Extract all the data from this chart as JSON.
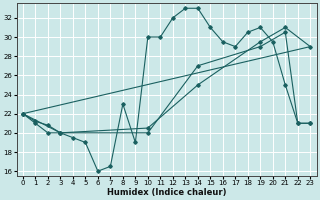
{
  "title": "",
  "xlabel": "Humidex (Indice chaleur)",
  "ylabel": "",
  "bg_color": "#cce8e8",
  "grid_color": "#ffffff",
  "line_color": "#1a6060",
  "xlim": [
    -0.5,
    23.5
  ],
  "ylim": [
    15.5,
    33.5
  ],
  "xticks": [
    0,
    1,
    2,
    3,
    4,
    5,
    6,
    7,
    8,
    9,
    10,
    11,
    12,
    13,
    14,
    15,
    16,
    17,
    18,
    19,
    20,
    21,
    22,
    23
  ],
  "yticks": [
    16,
    18,
    20,
    22,
    24,
    26,
    28,
    30,
    32
  ],
  "line1_x": [
    0,
    1,
    2,
    3,
    4,
    5,
    6,
    7,
    8,
    9,
    10,
    11,
    12,
    13,
    14,
    15,
    16,
    17,
    18,
    19,
    20,
    21,
    22,
    23
  ],
  "line1_y": [
    22,
    21,
    20,
    20,
    19.5,
    19,
    16,
    16.5,
    23,
    19,
    30,
    30,
    32,
    33,
    33,
    31,
    29.5,
    29,
    30.5,
    31,
    29.5,
    25,
    21,
    21
  ],
  "line2_x": [
    0,
    1,
    2,
    3,
    10,
    14,
    19,
    21,
    22,
    23
  ],
  "line2_y": [
    22,
    21.2,
    20.8,
    20,
    20,
    27,
    29,
    30.5,
    21,
    21
  ],
  "line3_x": [
    0,
    3,
    10,
    14,
    19,
    21,
    23
  ],
  "line3_y": [
    22,
    20,
    20.5,
    25,
    29.5,
    31,
    29
  ],
  "line4_x": [
    0,
    23
  ],
  "line4_y": [
    22,
    29
  ]
}
